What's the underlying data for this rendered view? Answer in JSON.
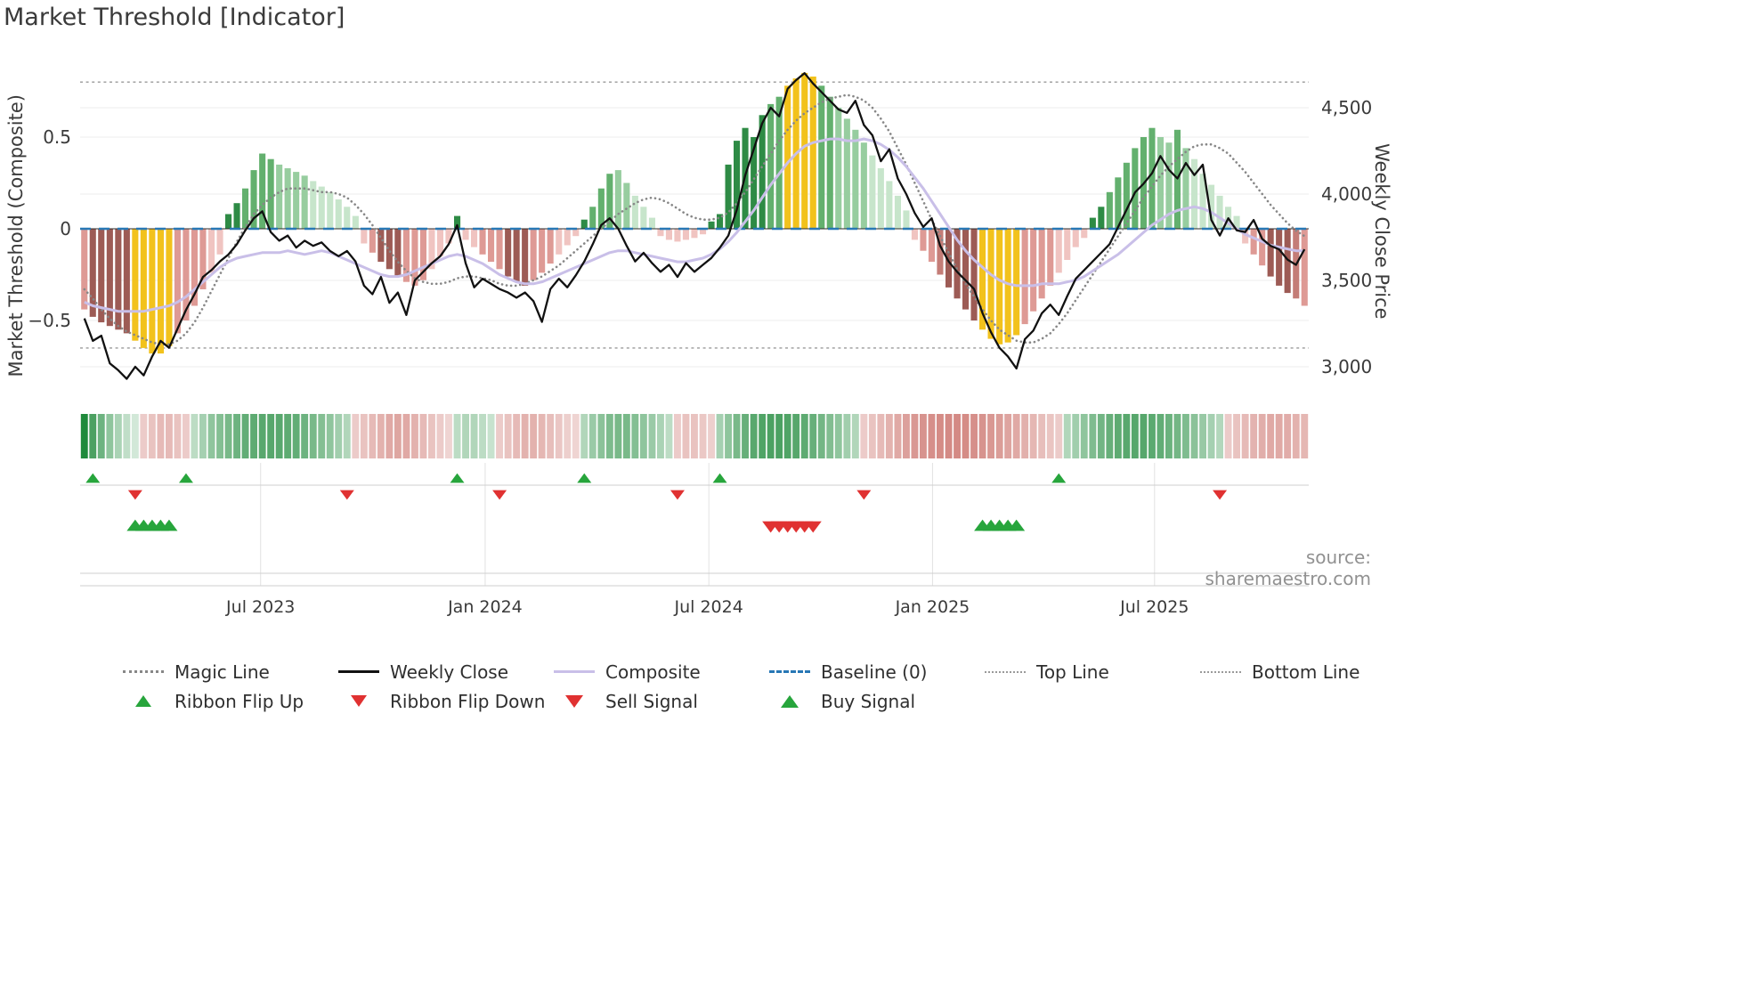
{
  "title": "Market Threshold [Indicator]",
  "source": "source: sharemaestro.com",
  "axes": {
    "left_label": "Market Threshold (Composite)",
    "right_label": "Weekly Close Price",
    "left_ticks": [
      {
        "value": 0.5,
        "label": "0.5"
      },
      {
        "value": 0,
        "label": "0"
      },
      {
        "value": -0.5,
        "label": "−0.5"
      }
    ],
    "right_ticks": [
      {
        "value": 4500,
        "label": "4,500"
      },
      {
        "value": 4000,
        "label": "4,000"
      },
      {
        "value": 3500,
        "label": "3,500"
      },
      {
        "value": 3000,
        "label": "3,000"
      }
    ],
    "x_ticks": [
      {
        "week": 20.8,
        "label": "Jul 2023"
      },
      {
        "week": 47.3,
        "label": "Jan 2024"
      },
      {
        "week": 73.7,
        "label": "Jul 2024"
      },
      {
        "week": 100.1,
        "label": "Jan 2025"
      },
      {
        "week": 126.3,
        "label": "Jul 2025"
      }
    ]
  },
  "colors": {
    "baseline": "#2878b5",
    "weekly_close": "#111111",
    "composite_line": "#c9bfe8",
    "magic_line": "#878787",
    "ref_dotted": "#9a9a9a",
    "grid": "#ededed",
    "flip_up": "#27a53c",
    "flip_down": "#e03131",
    "buy": "#27a53c",
    "sell": "#e03131",
    "ribbon_green": "#1f8a3b",
    "ribbon_red": "#c0534b",
    "palette": {
      "g4": "#2e8b45",
      "g3": "#63b06e",
      "g2": "#97cd9f",
      "g1": "#c7e5cb",
      "p1": "#f0c4c1",
      "p2": "#de9a95",
      "p3": "#c47d77",
      "r1": "#9d5b55",
      "y": "#f2c21c"
    }
  },
  "chart_data": [
    {
      "name": "main-panel",
      "type": "bar",
      "x_unit": "week",
      "x_span": "145 weekly bars, ticks at Jul 2023 / Jan 2024 / Jul 2024 / Jan 2025 / Jul 2025",
      "left_ylim": [
        -0.96,
        0.88
      ],
      "right_ylim": [
        2880,
        4720
      ],
      "grid": true,
      "reference_lines": {
        "baseline": 0,
        "top_line": 0.8,
        "bottom_line": -0.65
      },
      "bars": {
        "name": "Composite Histogram",
        "values": [
          -0.44,
          -0.48,
          -0.51,
          -0.53,
          -0.55,
          -0.57,
          -0.61,
          -0.65,
          -0.68,
          -0.68,
          -0.64,
          -0.57,
          -0.5,
          -0.42,
          -0.33,
          -0.24,
          -0.14,
          0.08,
          0.14,
          0.22,
          0.32,
          0.41,
          0.38,
          0.35,
          0.33,
          0.31,
          0.29,
          0.26,
          0.23,
          0.2,
          0.16,
          0.12,
          0.07,
          -0.08,
          -0.13,
          -0.18,
          -0.22,
          -0.26,
          -0.29,
          -0.31,
          -0.28,
          -0.22,
          -0.15,
          -0.08,
          0.07,
          -0.06,
          -0.1,
          -0.14,
          -0.18,
          -0.22,
          -0.26,
          -0.29,
          -0.31,
          -0.28,
          -0.24,
          -0.19,
          -0.14,
          -0.09,
          -0.04,
          0.05,
          0.12,
          0.22,
          0.3,
          0.32,
          0.25,
          0.18,
          0.12,
          0.06,
          -0.04,
          -0.06,
          -0.07,
          -0.06,
          -0.05,
          -0.03,
          0.04,
          0.08,
          0.35,
          0.48,
          0.55,
          0.5,
          0.62,
          0.68,
          0.72,
          0.78,
          0.82,
          0.85,
          0.83,
          0.78,
          0.72,
          0.66,
          0.6,
          0.54,
          0.47,
          0.4,
          0.33,
          0.26,
          0.18,
          0.1,
          -0.06,
          -0.12,
          -0.18,
          -0.25,
          -0.32,
          -0.38,
          -0.44,
          -0.5,
          -0.55,
          -0.6,
          -0.63,
          -0.62,
          -0.58,
          -0.52,
          -0.45,
          -0.38,
          -0.31,
          -0.24,
          -0.17,
          -0.1,
          -0.05,
          0.06,
          0.12,
          0.2,
          0.28,
          0.36,
          0.44,
          0.5,
          0.55,
          0.5,
          0.47,
          0.54,
          0.44,
          0.38,
          0.3,
          0.24,
          0.18,
          0.12,
          0.07,
          -0.08,
          -0.14,
          -0.2,
          -0.26,
          -0.31,
          -0.35,
          -0.38,
          -0.42
        ],
        "shades": [
          "p2",
          "r1",
          "r1",
          "r1",
          "r1",
          "r1",
          "y",
          "y",
          "y",
          "y",
          "y",
          "p2",
          "p2",
          "p2",
          "p2",
          "p1",
          "p1",
          "g4",
          "g4",
          "g3",
          "g3",
          "g3",
          "g3",
          "g2",
          "g2",
          "g2",
          "g2",
          "g1",
          "g1",
          "g1",
          "g1",
          "g1",
          "g1",
          "p1",
          "p2",
          "r1",
          "r1",
          "r1",
          "p2",
          "p2",
          "p2",
          "p1",
          "p1",
          "p1",
          "g4",
          "p1",
          "p1",
          "p2",
          "p2",
          "p2",
          "r1",
          "r1",
          "r1",
          "p2",
          "p2",
          "p2",
          "p1",
          "p1",
          "p1",
          "g4",
          "g3",
          "g3",
          "g3",
          "g2",
          "g2",
          "g1",
          "g1",
          "g1",
          "p1",
          "p1",
          "p1",
          "p1",
          "p1",
          "p1",
          "g4",
          "g4",
          "g4",
          "g4",
          "g4",
          "g4",
          "g4",
          "g3",
          "g3",
          "y",
          "y",
          "y",
          "y",
          "g3",
          "g3",
          "g2",
          "g2",
          "g2",
          "g2",
          "g1",
          "g1",
          "g1",
          "g1",
          "g1",
          "p1",
          "p2",
          "p2",
          "p3",
          "r1",
          "r1",
          "r1",
          "r1",
          "y",
          "y",
          "y",
          "y",
          "y",
          "p2",
          "p2",
          "p2",
          "p2",
          "p1",
          "p1",
          "p1",
          "p1",
          "g4",
          "g4",
          "g3",
          "g3",
          "g3",
          "g3",
          "g3",
          "g3",
          "g2",
          "g2",
          "g3",
          "g2",
          "g1",
          "g1",
          "g1",
          "g1",
          "g1",
          "g1",
          "p1",
          "p2",
          "p2",
          "r1",
          "r1",
          "r1",
          "p3",
          "p2"
        ]
      },
      "series": [
        {
          "name": "Weekly Close",
          "axis": "right",
          "values": [
            3280,
            3150,
            3180,
            3020,
            2980,
            2930,
            3000,
            2950,
            3060,
            3150,
            3110,
            3220,
            3330,
            3420,
            3520,
            3560,
            3610,
            3650,
            3710,
            3790,
            3860,
            3900,
            3780,
            3730,
            3760,
            3690,
            3730,
            3700,
            3720,
            3670,
            3640,
            3670,
            3610,
            3470,
            3420,
            3520,
            3370,
            3430,
            3300,
            3500,
            3550,
            3600,
            3640,
            3710,
            3820,
            3600,
            3460,
            3510,
            3480,
            3450,
            3430,
            3400,
            3430,
            3380,
            3260,
            3450,
            3510,
            3460,
            3530,
            3610,
            3710,
            3820,
            3860,
            3800,
            3700,
            3610,
            3660,
            3600,
            3550,
            3590,
            3520,
            3600,
            3550,
            3590,
            3630,
            3690,
            3760,
            3910,
            4110,
            4260,
            4410,
            4500,
            4450,
            4610,
            4660,
            4700,
            4640,
            4590,
            4540,
            4490,
            4470,
            4540,
            4400,
            4340,
            4190,
            4260,
            4090,
            4000,
            3890,
            3810,
            3860,
            3700,
            3610,
            3550,
            3500,
            3450,
            3310,
            3200,
            3110,
            3060,
            2990,
            3160,
            3210,
            3310,
            3360,
            3300,
            3410,
            3510,
            3560,
            3610,
            3660,
            3710,
            3810,
            3910,
            4010,
            4060,
            4120,
            4220,
            4140,
            4090,
            4180,
            4110,
            4170,
            3850,
            3760,
            3860,
            3790,
            3780,
            3850,
            3740,
            3700,
            3680,
            3620,
            3590,
            3680
          ]
        },
        {
          "name": "Composite",
          "axis": "left",
          "values": [
            -0.4,
            -0.42,
            -0.43,
            -0.44,
            -0.45,
            -0.45,
            -0.45,
            -0.45,
            -0.44,
            -0.43,
            -0.42,
            -0.4,
            -0.37,
            -0.33,
            -0.29,
            -0.25,
            -0.21,
            -0.18,
            -0.16,
            -0.15,
            -0.14,
            -0.13,
            -0.13,
            -0.13,
            -0.12,
            -0.13,
            -0.14,
            -0.13,
            -0.12,
            -0.13,
            -0.15,
            -0.17,
            -0.19,
            -0.21,
            -0.23,
            -0.25,
            -0.26,
            -0.26,
            -0.25,
            -0.23,
            -0.21,
            -0.19,
            -0.17,
            -0.15,
            -0.14,
            -0.15,
            -0.17,
            -0.19,
            -0.22,
            -0.25,
            -0.27,
            -0.29,
            -0.3,
            -0.3,
            -0.29,
            -0.27,
            -0.25,
            -0.23,
            -0.21,
            -0.19,
            -0.17,
            -0.15,
            -0.13,
            -0.12,
            -0.12,
            -0.13,
            -0.14,
            -0.15,
            -0.16,
            -0.17,
            -0.18,
            -0.18,
            -0.17,
            -0.16,
            -0.14,
            -0.11,
            -0.07,
            -0.02,
            0.04,
            0.1,
            0.17,
            0.24,
            0.3,
            0.36,
            0.41,
            0.45,
            0.47,
            0.48,
            0.49,
            0.49,
            0.48,
            0.48,
            0.49,
            0.48,
            0.46,
            0.43,
            0.39,
            0.34,
            0.28,
            0.22,
            0.15,
            0.08,
            0.01,
            -0.06,
            -0.12,
            -0.17,
            -0.21,
            -0.25,
            -0.28,
            -0.3,
            -0.31,
            -0.31,
            -0.31,
            -0.3,
            -0.3,
            -0.3,
            -0.29,
            -0.28,
            -0.26,
            -0.23,
            -0.2,
            -0.17,
            -0.14,
            -0.1,
            -0.06,
            -0.02,
            0.02,
            0.05,
            0.08,
            0.1,
            0.11,
            0.12,
            0.11,
            0.09,
            0.06,
            0.03,
            0,
            -0.03,
            -0.05,
            -0.07,
            -0.09,
            -0.1,
            -0.11,
            -0.12,
            -0.12
          ]
        },
        {
          "name": "Magic Line",
          "axis": "left",
          "values": [
            -0.33,
            -0.38,
            -0.44,
            -0.49,
            -0.53,
            -0.56,
            -0.58,
            -0.6,
            -0.62,
            -0.63,
            -0.63,
            -0.61,
            -0.57,
            -0.51,
            -0.43,
            -0.34,
            -0.25,
            -0.16,
            -0.07,
            0.01,
            0.08,
            0.13,
            0.17,
            0.2,
            0.22,
            0.22,
            0.22,
            0.21,
            0.2,
            0.2,
            0.19,
            0.17,
            0.13,
            0.08,
            0.02,
            -0.05,
            -0.12,
            -0.18,
            -0.23,
            -0.27,
            -0.29,
            -0.3,
            -0.3,
            -0.29,
            -0.27,
            -0.26,
            -0.26,
            -0.27,
            -0.28,
            -0.3,
            -0.31,
            -0.31,
            -0.3,
            -0.28,
            -0.26,
            -0.23,
            -0.2,
            -0.16,
            -0.12,
            -0.08,
            -0.04,
            0,
            0.04,
            0.08,
            0.11,
            0.14,
            0.16,
            0.17,
            0.16,
            0.14,
            0.11,
            0.08,
            0.06,
            0.05,
            0.05,
            0.06,
            0.09,
            0.14,
            0.2,
            0.27,
            0.34,
            0.41,
            0.48,
            0.54,
            0.59,
            0.63,
            0.66,
            0.69,
            0.71,
            0.72,
            0.73,
            0.72,
            0.7,
            0.66,
            0.6,
            0.53,
            0.44,
            0.35,
            0.25,
            0.15,
            0.05,
            -0.04,
            -0.13,
            -0.22,
            -0.3,
            -0.37,
            -0.44,
            -0.5,
            -0.55,
            -0.58,
            -0.61,
            -0.62,
            -0.62,
            -0.6,
            -0.57,
            -0.52,
            -0.46,
            -0.39,
            -0.32,
            -0.25,
            -0.18,
            -0.11,
            -0.04,
            0.03,
            0.1,
            0.17,
            0.23,
            0.29,
            0.34,
            0.38,
            0.42,
            0.45,
            0.46,
            0.46,
            0.44,
            0.41,
            0.36,
            0.31,
            0.25,
            0.19,
            0.13,
            0.08,
            0.03,
            -0.01,
            -0.04
          ]
        }
      ]
    },
    {
      "name": "trend-ribbon",
      "type": "heatmap",
      "description": "signed intensity per week: positive=green, negative=red",
      "values": [
        1,
        0.8,
        0.65,
        0.5,
        0.38,
        0.28,
        0.2,
        -0.3,
        -0.35,
        -0.4,
        -0.4,
        -0.35,
        -0.3,
        0.3,
        0.4,
        0.5,
        0.55,
        0.6,
        0.65,
        0.7,
        0.72,
        0.74,
        0.75,
        0.74,
        0.72,
        0.7,
        0.65,
        0.6,
        0.55,
        0.5,
        0.42,
        0.35,
        -0.3,
        -0.35,
        -0.4,
        -0.45,
        -0.5,
        -0.52,
        -0.5,
        -0.45,
        -0.4,
        -0.35,
        -0.3,
        -0.25,
        0.3,
        0.35,
        0.35,
        0.3,
        0.25,
        -0.3,
        -0.35,
        -0.4,
        -0.45,
        -0.45,
        -0.42,
        -0.38,
        -0.33,
        -0.28,
        -0.25,
        0.35,
        0.45,
        0.52,
        0.58,
        0.6,
        0.6,
        0.55,
        0.5,
        0.45,
        0.38,
        0.3,
        -0.3,
        -0.35,
        -0.35,
        -0.32,
        -0.28,
        0.4,
        0.5,
        0.6,
        0.68,
        0.74,
        0.78,
        0.8,
        0.8,
        0.78,
        0.75,
        0.72,
        0.68,
        0.62,
        0.56,
        0.5,
        0.42,
        0.35,
        -0.3,
        -0.35,
        -0.4,
        -0.45,
        -0.5,
        -0.55,
        -0.6,
        -0.63,
        -0.65,
        -0.67,
        -0.68,
        -0.68,
        -0.67,
        -0.65,
        -0.63,
        -0.6,
        -0.57,
        -0.53,
        -0.5,
        -0.46,
        -0.42,
        -0.38,
        -0.34,
        -0.3,
        0.35,
        0.42,
        0.5,
        0.57,
        0.63,
        0.68,
        0.72,
        0.74,
        0.75,
        0.75,
        0.73,
        0.7,
        0.66,
        0.62,
        0.57,
        0.52,
        0.46,
        0.4,
        0.34,
        -0.3,
        -0.35,
        -0.4,
        -0.44,
        -0.47,
        -0.5,
        -0.5,
        -0.48,
        -0.45,
        -0.42
      ]
    },
    {
      "name": "signal-markers",
      "type": "scatter",
      "ribbon_flip_up": [
        1,
        12,
        44,
        59,
        75,
        115
      ],
      "ribbon_flip_down": [
        6,
        31,
        49,
        70,
        92,
        134
      ],
      "buy": [
        6,
        7,
        8,
        9,
        10,
        106,
        107,
        108,
        109,
        110
      ],
      "sell": [
        81,
        82,
        83,
        84,
        85,
        86
      ]
    }
  ],
  "legend": {
    "rows": [
      [
        {
          "label": "Magic Line",
          "key": "magic-line"
        },
        {
          "label": "Weekly Close",
          "key": "weekly-close"
        },
        {
          "label": "Composite",
          "key": "composite"
        },
        {
          "label": "Baseline (0)",
          "key": "baseline"
        },
        {
          "label": "Top Line",
          "key": "top-line"
        },
        {
          "label": "Bottom Line",
          "key": "bottom-line"
        }
      ],
      [
        {
          "label": "Ribbon Flip Up",
          "key": "ribbon-flip-up"
        },
        {
          "label": "Ribbon Flip Down",
          "key": "ribbon-flip-down"
        },
        {
          "label": "Sell Signal",
          "key": "sell-signal"
        },
        {
          "label": "Buy Signal",
          "key": "buy-signal"
        }
      ]
    ]
  }
}
